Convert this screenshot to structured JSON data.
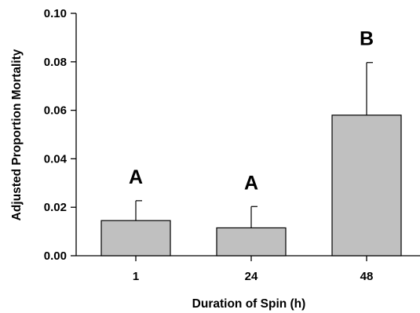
{
  "chart_data": {
    "type": "bar",
    "title": "",
    "xlabel": "Duration of Spin (h)",
    "ylabel": "Adjusted Proportion Mortality",
    "categories": [
      "1",
      "24",
      "48"
    ],
    "values": [
      0.0145,
      0.0115,
      0.058
    ],
    "error_upper": [
      0.0227,
      0.0203,
      0.0797
    ],
    "significance_labels": [
      "A",
      "A",
      "B"
    ],
    "ylim": [
      0,
      0.1
    ],
    "yticks": [
      0.0,
      0.02,
      0.04,
      0.06,
      0.08,
      0.1
    ],
    "ytick_labels": [
      "0.00",
      "0.02",
      "0.04",
      "0.06",
      "0.08",
      "0.10"
    ],
    "grid": false,
    "bar_color": "#c0c0c0",
    "bar_edge_color": "#000000"
  }
}
